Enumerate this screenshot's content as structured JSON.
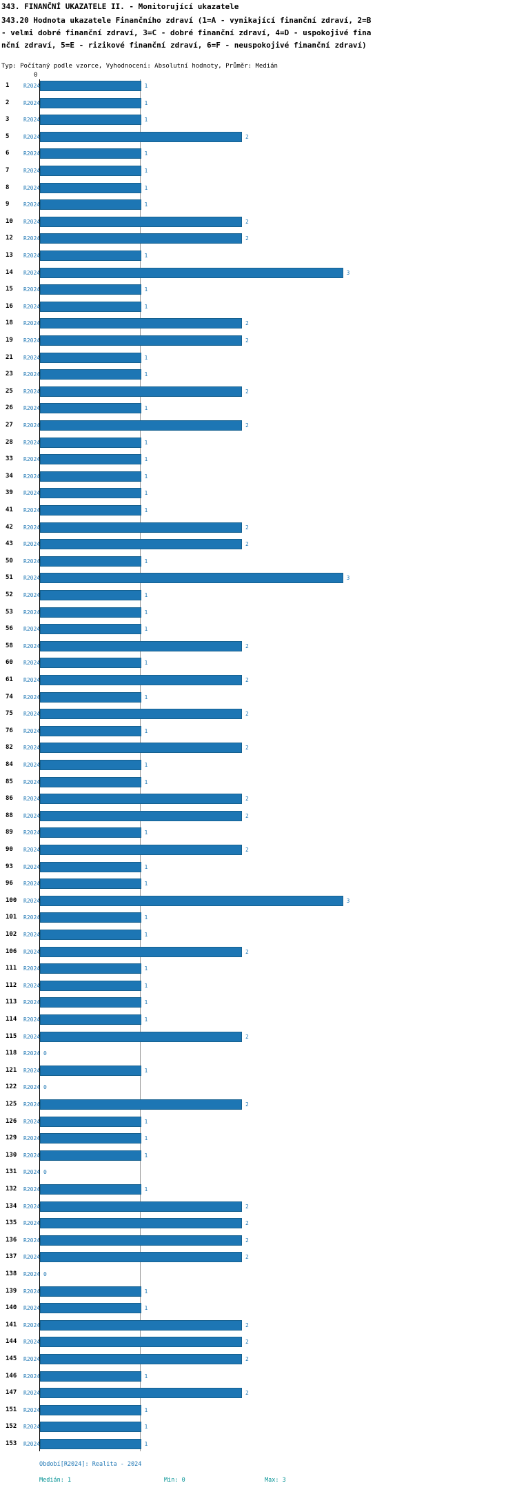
{
  "header": {
    "title_line1": "343. FINANČNÍ UKAZATELE II. - Monitorující ukazatele",
    "title_line2": "343.20 Hodnota ukazatele Finančního zdraví (1=A - vynikající finanční zdraví, 2=B - velmi dobré finanční zdraví, 3=C - dobré finanční zdraví, 4=D - uspokojivé finanční zdraví, 5=E - rizikové finanční zdraví, 6=F - neuspokojivé finanční zdraví)",
    "meta": "Typ: Počítaný podle vzorce, Vyhodnocení: Absolutní hodnoty, Průměr: Medián"
  },
  "footer": {
    "period": "Období[R2024]: Realita - 2024",
    "median_label": "Medián: 1",
    "min_label": "Min: 0",
    "max_label": "Max: 3"
  },
  "chart_data": {
    "type": "bar",
    "orientation": "horizontal",
    "title": "343. FINANČNÍ UKAZATELE II. - Monitorující ukazatele",
    "subtitle": "343.20 Hodnota ukazatele Finančního zdraví (1=A - vynikající finanční zdraví, 2=B - velmi dobré finanční zdraví, 3=C - dobré finanční zdraví, 4=D - uspokojivé finanční zdraví, 5=E - rizikové finanční zdraví, 6=F - neuspokojivé finanční zdraví)",
    "series_label": "R2024",
    "x_tick": "0",
    "xlim": [
      0,
      3
    ],
    "median": 1,
    "min": 0,
    "max": 3,
    "grid": "median-line-only",
    "categories": [
      "1",
      "2",
      "3",
      "5",
      "6",
      "7",
      "8",
      "9",
      "10",
      "12",
      "13",
      "14",
      "15",
      "16",
      "18",
      "19",
      "21",
      "23",
      "25",
      "26",
      "27",
      "28",
      "33",
      "34",
      "39",
      "41",
      "42",
      "43",
      "50",
      "51",
      "52",
      "53",
      "56",
      "58",
      "60",
      "61",
      "74",
      "75",
      "76",
      "82",
      "84",
      "85",
      "86",
      "88",
      "89",
      "90",
      "93",
      "96",
      "100",
      "101",
      "102",
      "106",
      "111",
      "112",
      "113",
      "114",
      "115",
      "118",
      "121",
      "122",
      "125",
      "126",
      "129",
      "130",
      "131",
      "132",
      "134",
      "135",
      "136",
      "137",
      "138",
      "139",
      "140",
      "141",
      "144",
      "145",
      "146",
      "147",
      "151",
      "152",
      "153"
    ],
    "values": [
      1,
      1,
      1,
      2,
      1,
      1,
      1,
      1,
      2,
      2,
      1,
      3,
      1,
      1,
      2,
      2,
      1,
      1,
      2,
      1,
      2,
      1,
      1,
      1,
      1,
      1,
      2,
      2,
      1,
      3,
      1,
      1,
      1,
      2,
      1,
      2,
      1,
      2,
      1,
      2,
      1,
      1,
      2,
      2,
      1,
      2,
      1,
      1,
      3,
      1,
      1,
      2,
      1,
      1,
      1,
      1,
      2,
      0,
      1,
      0,
      2,
      1,
      1,
      1,
      0,
      1,
      2,
      2,
      2,
      2,
      0,
      1,
      1,
      2,
      2,
      2,
      1,
      2,
      1,
      1,
      1
    ],
    "colors": {
      "bar": "#1d76b4",
      "bar_border": "#15608f",
      "series_label": "#1f77b4",
      "value_label": "#1f77b4",
      "period_text": "#1f77b4",
      "stats_text": "#009193",
      "axis": "#000000",
      "median_line": "#9a9a9a"
    }
  }
}
